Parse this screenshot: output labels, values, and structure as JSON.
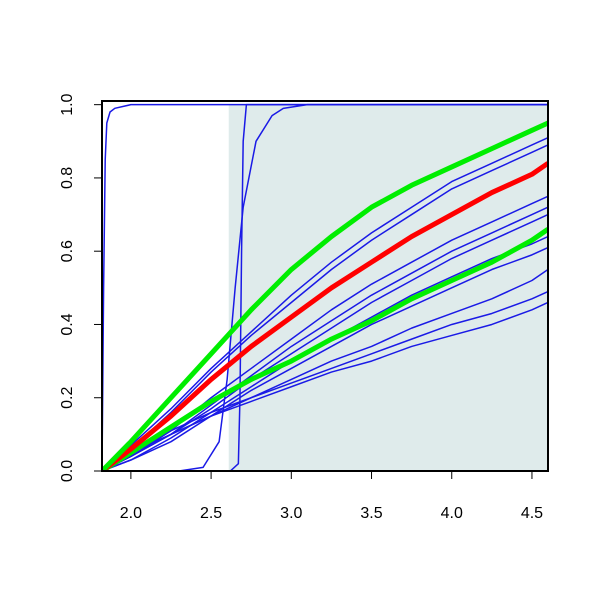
{
  "chart_data": {
    "type": "line",
    "xlim": [
      1.82,
      4.6
    ],
    "ylim": [
      0,
      1.01
    ],
    "xticks": [
      {
        "value": 2,
        "label": "2.0"
      },
      2.5,
      {
        "value": 3,
        "label": "3.0"
      },
      3.5,
      {
        "value": 4,
        "label": "4.0"
      },
      4.5
    ],
    "yticks": [
      {
        "value": 0,
        "label": "0.0"
      },
      0.2,
      0.4,
      0.6,
      0.8,
      {
        "value": 1,
        "label": "1.0"
      }
    ],
    "shade": {
      "xlim": [
        2.61,
        4.6
      ],
      "ylim": [
        0,
        1
      ],
      "color": "#dfebeb"
    },
    "x": [
      1.82,
      2.0,
      2.25,
      2.5,
      2.75,
      3.0,
      3.25,
      3.5,
      3.75,
      4.0,
      4.25,
      4.5,
      4.6
    ],
    "series": [
      {
        "color": "#1a1ae6",
        "width": 1.5,
        "x": [
          1.82,
          1.83,
          1.84,
          1.85,
          1.87,
          1.9,
          2.0,
          4.6
        ],
        "values": [
          0,
          0.5,
          0.85,
          0.95,
          0.98,
          0.99,
          1,
          1
        ]
      },
      {
        "color": "#1a1ae6",
        "width": 1.5,
        "x": [
          1.82,
          2.3,
          2.45,
          2.55,
          2.6,
          2.65,
          2.7,
          2.78,
          2.88,
          2.95,
          3.1,
          4.6
        ],
        "values": [
          0,
          0,
          0.01,
          0.08,
          0.25,
          0.5,
          0.72,
          0.9,
          0.97,
          0.99,
          1,
          1
        ]
      },
      {
        "color": "#1a1ae6",
        "width": 1.5,
        "x": [
          1.82,
          2.62,
          2.67,
          2.68,
          2.69,
          2.7,
          2.72,
          4.6
        ],
        "values": [
          0,
          0,
          0.02,
          0.2,
          0.6,
          0.9,
          1,
          1
        ]
      },
      {
        "color": "#1a1ae6",
        "width": 1.5,
        "values": [
          0,
          0.07,
          0.17,
          0.28,
          0.38,
          0.48,
          0.57,
          0.65,
          0.72,
          0.79,
          0.84,
          0.89,
          0.91
        ]
      },
      {
        "color": "#1a1ae6",
        "width": 1.5,
        "values": [
          0,
          0.06,
          0.16,
          0.27,
          0.37,
          0.46,
          0.55,
          0.63,
          0.7,
          0.77,
          0.82,
          0.87,
          0.89
        ]
      },
      {
        "color": "#1a1ae6",
        "width": 1.5,
        "values": [
          0,
          0.04,
          0.11,
          0.2,
          0.28,
          0.36,
          0.44,
          0.51,
          0.57,
          0.63,
          0.68,
          0.73,
          0.75
        ]
      },
      {
        "color": "#1a1ae6",
        "width": 1.5,
        "values": [
          0,
          0.04,
          0.1,
          0.18,
          0.26,
          0.34,
          0.41,
          0.48,
          0.54,
          0.6,
          0.65,
          0.7,
          0.72
        ]
      },
      {
        "color": "#1a1ae6",
        "width": 1.5,
        "values": [
          0,
          0.04,
          0.1,
          0.17,
          0.25,
          0.32,
          0.39,
          0.46,
          0.52,
          0.58,
          0.63,
          0.68,
          0.7
        ]
      },
      {
        "color": "#1a1ae6",
        "width": 1.5,
        "values": [
          0,
          0.03,
          0.09,
          0.16,
          0.23,
          0.3,
          0.36,
          0.42,
          0.48,
          0.53,
          0.58,
          0.62,
          0.64
        ]
      },
      {
        "color": "#1a1ae6",
        "width": 1.5,
        "values": [
          0,
          0.03,
          0.08,
          0.15,
          0.22,
          0.28,
          0.34,
          0.4,
          0.45,
          0.5,
          0.55,
          0.59,
          0.61
        ]
      },
      {
        "color": "#1a1ae6",
        "width": 1.5,
        "values": [
          0,
          0.04,
          0.1,
          0.15,
          0.2,
          0.25,
          0.3,
          0.34,
          0.39,
          0.43,
          0.47,
          0.52,
          0.55
        ]
      },
      {
        "color": "#1a1ae6",
        "width": 1.5,
        "values": [
          0,
          0.05,
          0.11,
          0.16,
          0.2,
          0.24,
          0.28,
          0.32,
          0.36,
          0.4,
          0.43,
          0.47,
          0.49
        ]
      },
      {
        "color": "#1a1ae6",
        "width": 1.5,
        "values": [
          0,
          0.05,
          0.1,
          0.15,
          0.19,
          0.23,
          0.27,
          0.3,
          0.34,
          0.37,
          0.4,
          0.44,
          0.46
        ]
      },
      {
        "color": "#00ee00",
        "width": 5,
        "values": [
          0,
          0.05,
          0.12,
          0.19,
          0.25,
          0.3,
          0.36,
          0.41,
          0.47,
          0.52,
          0.57,
          0.63,
          0.66
        ]
      },
      {
        "color": "#ff0000",
        "width": 5,
        "values": [
          0,
          0.06,
          0.15,
          0.25,
          0.34,
          0.42,
          0.5,
          0.57,
          0.64,
          0.7,
          0.76,
          0.81,
          0.84
        ]
      },
      {
        "color": "#00ee00",
        "width": 5,
        "values": [
          0,
          0.08,
          0.2,
          0.32,
          0.44,
          0.55,
          0.64,
          0.72,
          0.78,
          0.83,
          0.88,
          0.93,
          0.95
        ]
      }
    ]
  }
}
